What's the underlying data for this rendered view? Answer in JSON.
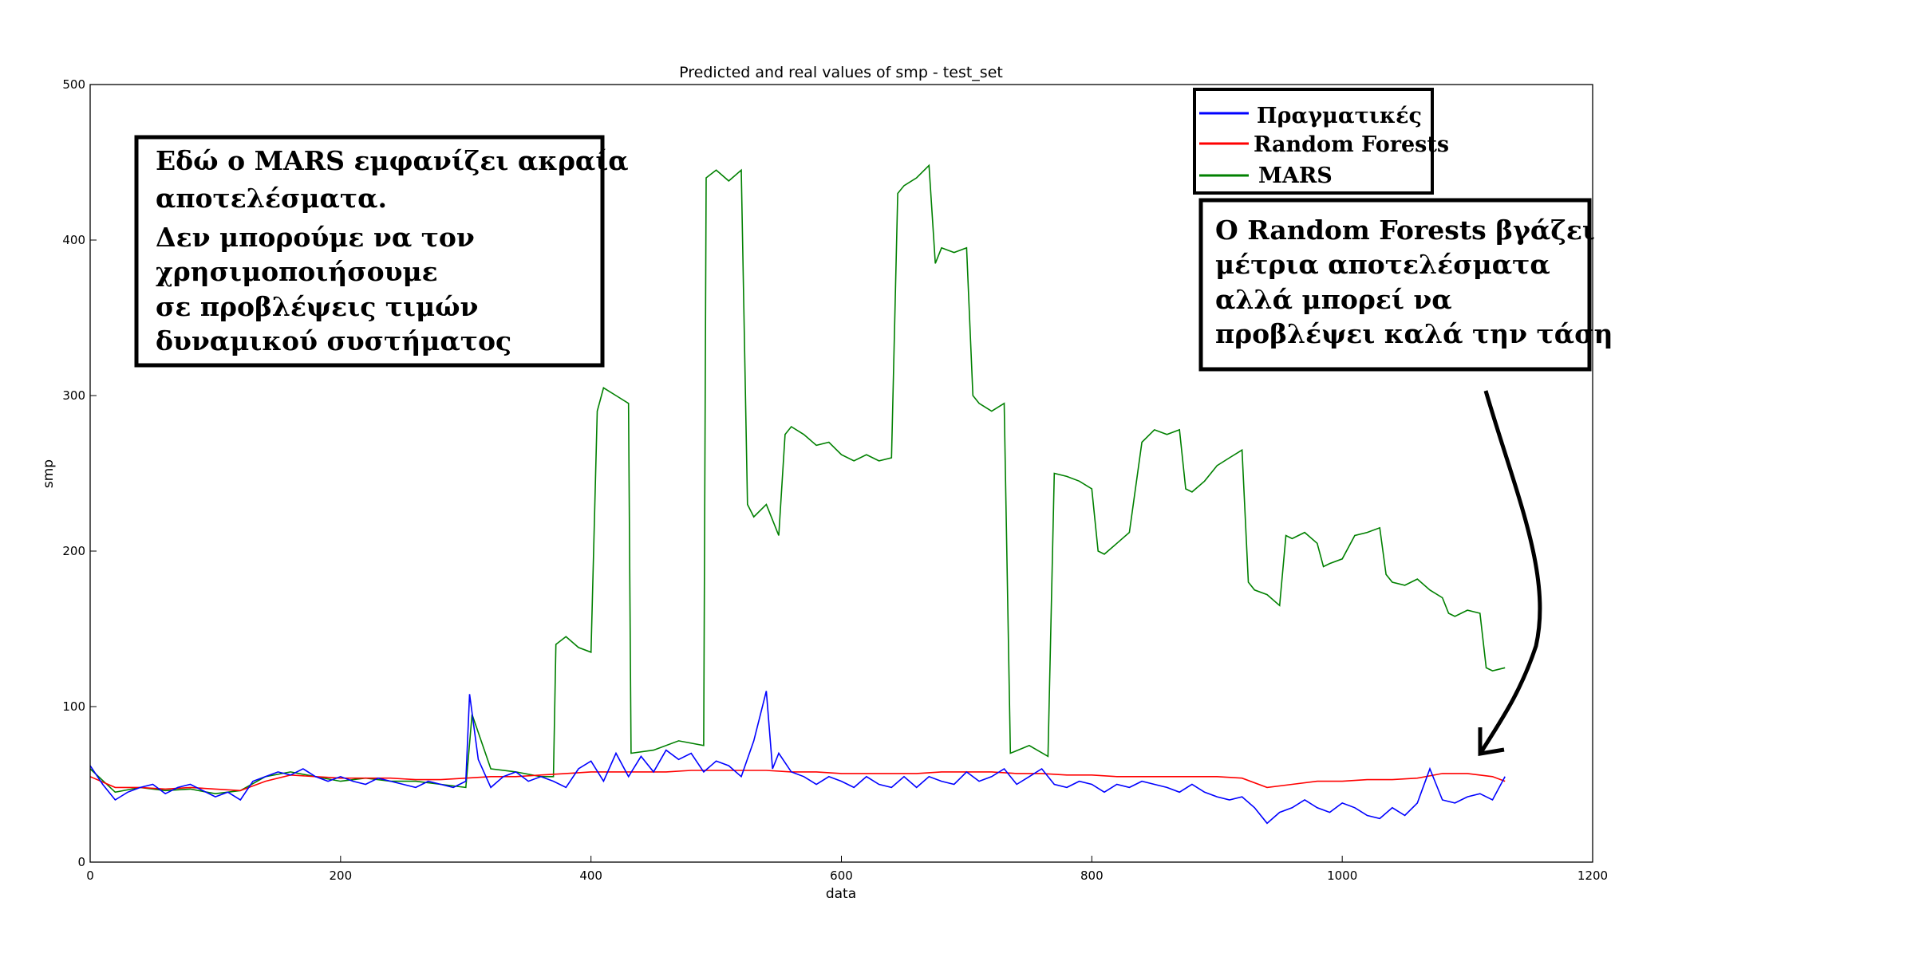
{
  "chart_data": {
    "type": "line",
    "title": "Predicted and real values of smp - test_set",
    "xlabel": "data",
    "ylabel": "smp",
    "xlim": [
      0,
      1200
    ],
    "ylim": [
      0,
      500
    ],
    "xticks": [
      "0",
      "200",
      "400",
      "600",
      "800",
      "1000",
      "1200"
    ],
    "yticks": [
      "0",
      "100",
      "200",
      "300",
      "400",
      "500"
    ],
    "legend_position": "top-right",
    "series": [
      {
        "name": "Πραγματικές",
        "color": "#0000ff",
        "points": [
          [
            0,
            62
          ],
          [
            10,
            50
          ],
          [
            20,
            40
          ],
          [
            30,
            45
          ],
          [
            40,
            48
          ],
          [
            50,
            50
          ],
          [
            60,
            44
          ],
          [
            70,
            48
          ],
          [
            80,
            50
          ],
          [
            90,
            46
          ],
          [
            100,
            42
          ],
          [
            110,
            45
          ],
          [
            120,
            40
          ],
          [
            130,
            52
          ],
          [
            140,
            55
          ],
          [
            150,
            58
          ],
          [
            160,
            56
          ],
          [
            170,
            60
          ],
          [
            180,
            55
          ],
          [
            190,
            52
          ],
          [
            200,
            55
          ],
          [
            210,
            52
          ],
          [
            220,
            50
          ],
          [
            230,
            54
          ],
          [
            240,
            52
          ],
          [
            250,
            50
          ],
          [
            260,
            48
          ],
          [
            270,
            52
          ],
          [
            280,
            50
          ],
          [
            290,
            48
          ],
          [
            300,
            52
          ],
          [
            303,
            108
          ],
          [
            310,
            66
          ],
          [
            320,
            48
          ],
          [
            330,
            55
          ],
          [
            340,
            58
          ],
          [
            350,
            52
          ],
          [
            360,
            55
          ],
          [
            370,
            52
          ],
          [
            380,
            48
          ],
          [
            390,
            60
          ],
          [
            400,
            65
          ],
          [
            410,
            52
          ],
          [
            420,
            70
          ],
          [
            430,
            55
          ],
          [
            440,
            68
          ],
          [
            450,
            58
          ],
          [
            460,
            72
          ],
          [
            470,
            66
          ],
          [
            480,
            70
          ],
          [
            490,
            58
          ],
          [
            500,
            65
          ],
          [
            510,
            62
          ],
          [
            520,
            55
          ],
          [
            530,
            78
          ],
          [
            540,
            110
          ],
          [
            545,
            60
          ],
          [
            550,
            70
          ],
          [
            560,
            58
          ],
          [
            570,
            55
          ],
          [
            580,
            50
          ],
          [
            590,
            55
          ],
          [
            600,
            52
          ],
          [
            610,
            48
          ],
          [
            620,
            55
          ],
          [
            630,
            50
          ],
          [
            640,
            48
          ],
          [
            650,
            55
          ],
          [
            660,
            48
          ],
          [
            670,
            55
          ],
          [
            680,
            52
          ],
          [
            690,
            50
          ],
          [
            700,
            58
          ],
          [
            710,
            52
          ],
          [
            720,
            55
          ],
          [
            730,
            60
          ],
          [
            740,
            50
          ],
          [
            750,
            55
          ],
          [
            760,
            60
          ],
          [
            770,
            50
          ],
          [
            780,
            48
          ],
          [
            790,
            52
          ],
          [
            800,
            50
          ],
          [
            810,
            45
          ],
          [
            820,
            50
          ],
          [
            830,
            48
          ],
          [
            840,
            52
          ],
          [
            850,
            50
          ],
          [
            860,
            48
          ],
          [
            870,
            45
          ],
          [
            880,
            50
          ],
          [
            890,
            45
          ],
          [
            900,
            42
          ],
          [
            910,
            40
          ],
          [
            920,
            42
          ],
          [
            930,
            35
          ],
          [
            940,
            25
          ],
          [
            950,
            32
          ],
          [
            960,
            35
          ],
          [
            970,
            40
          ],
          [
            980,
            35
          ],
          [
            990,
            32
          ],
          [
            1000,
            38
          ],
          [
            1010,
            35
          ],
          [
            1020,
            30
          ],
          [
            1030,
            28
          ],
          [
            1040,
            35
          ],
          [
            1050,
            30
          ],
          [
            1060,
            38
          ],
          [
            1070,
            60
          ],
          [
            1080,
            40
          ],
          [
            1090,
            38
          ],
          [
            1100,
            42
          ],
          [
            1110,
            44
          ],
          [
            1120,
            40
          ],
          [
            1130,
            55
          ]
        ]
      },
      {
        "name": "Random Forests",
        "color": "#ff0000",
        "points": [
          [
            0,
            55
          ],
          [
            20,
            48
          ],
          [
            40,
            48
          ],
          [
            60,
            47
          ],
          [
            80,
            48
          ],
          [
            100,
            47
          ],
          [
            120,
            46
          ],
          [
            140,
            52
          ],
          [
            160,
            56
          ],
          [
            180,
            55
          ],
          [
            200,
            54
          ],
          [
            220,
            54
          ],
          [
            240,
            54
          ],
          [
            260,
            53
          ],
          [
            280,
            53
          ],
          [
            300,
            54
          ],
          [
            320,
            55
          ],
          [
            340,
            55
          ],
          [
            360,
            56
          ],
          [
            380,
            57
          ],
          [
            400,
            58
          ],
          [
            420,
            58
          ],
          [
            440,
            58
          ],
          [
            460,
            58
          ],
          [
            480,
            59
          ],
          [
            500,
            59
          ],
          [
            520,
            59
          ],
          [
            540,
            59
          ],
          [
            560,
            58
          ],
          [
            580,
            58
          ],
          [
            600,
            57
          ],
          [
            620,
            57
          ],
          [
            640,
            57
          ],
          [
            660,
            57
          ],
          [
            680,
            58
          ],
          [
            700,
            58
          ],
          [
            720,
            58
          ],
          [
            740,
            57
          ],
          [
            760,
            57
          ],
          [
            780,
            56
          ],
          [
            800,
            56
          ],
          [
            820,
            55
          ],
          [
            840,
            55
          ],
          [
            860,
            55
          ],
          [
            880,
            55
          ],
          [
            900,
            55
          ],
          [
            920,
            54
          ],
          [
            940,
            48
          ],
          [
            960,
            50
          ],
          [
            980,
            52
          ],
          [
            1000,
            52
          ],
          [
            1020,
            53
          ],
          [
            1040,
            53
          ],
          [
            1060,
            54
          ],
          [
            1080,
            57
          ],
          [
            1100,
            57
          ],
          [
            1120,
            55
          ],
          [
            1130,
            52
          ]
        ]
      },
      {
        "name": "MARS",
        "color": "#008000",
        "points": [
          [
            0,
            60
          ],
          [
            20,
            45
          ],
          [
            40,
            48
          ],
          [
            60,
            46
          ],
          [
            80,
            47
          ],
          [
            100,
            44
          ],
          [
            120,
            46
          ],
          [
            140,
            55
          ],
          [
            160,
            58
          ],
          [
            180,
            55
          ],
          [
            200,
            52
          ],
          [
            220,
            54
          ],
          [
            240,
            52
          ],
          [
            260,
            52
          ],
          [
            280,
            50
          ],
          [
            300,
            48
          ],
          [
            305,
            95
          ],
          [
            320,
            60
          ],
          [
            340,
            58
          ],
          [
            360,
            55
          ],
          [
            370,
            55
          ],
          [
            372,
            140
          ],
          [
            380,
            145
          ],
          [
            390,
            138
          ],
          [
            400,
            135
          ],
          [
            405,
            290
          ],
          [
            410,
            305
          ],
          [
            420,
            300
          ],
          [
            430,
            295
          ],
          [
            432,
            70
          ],
          [
            450,
            72
          ],
          [
            470,
            78
          ],
          [
            490,
            75
          ],
          [
            492,
            440
          ],
          [
            500,
            445
          ],
          [
            510,
            438
          ],
          [
            520,
            445
          ],
          [
            525,
            230
          ],
          [
            530,
            222
          ],
          [
            540,
            230
          ],
          [
            550,
            210
          ],
          [
            555,
            275
          ],
          [
            560,
            280
          ],
          [
            570,
            275
          ],
          [
            580,
            268
          ],
          [
            590,
            270
          ],
          [
            600,
            262
          ],
          [
            610,
            258
          ],
          [
            620,
            262
          ],
          [
            630,
            258
          ],
          [
            640,
            260
          ],
          [
            645,
            430
          ],
          [
            650,
            435
          ],
          [
            660,
            440
          ],
          [
            670,
            448
          ],
          [
            675,
            385
          ],
          [
            680,
            395
          ],
          [
            690,
            392
          ],
          [
            700,
            395
          ],
          [
            705,
            300
          ],
          [
            710,
            295
          ],
          [
            720,
            290
          ],
          [
            730,
            295
          ],
          [
            735,
            70
          ],
          [
            750,
            75
          ],
          [
            765,
            68
          ],
          [
            770,
            250
          ],
          [
            780,
            248
          ],
          [
            790,
            245
          ],
          [
            800,
            240
          ],
          [
            805,
            200
          ],
          [
            810,
            198
          ],
          [
            820,
            205
          ],
          [
            830,
            212
          ],
          [
            840,
            270
          ],
          [
            850,
            278
          ],
          [
            860,
            275
          ],
          [
            870,
            278
          ],
          [
            875,
            240
          ],
          [
            880,
            238
          ],
          [
            890,
            245
          ],
          [
            900,
            255
          ],
          [
            910,
            260
          ],
          [
            920,
            265
          ],
          [
            925,
            180
          ],
          [
            930,
            175
          ],
          [
            940,
            172
          ],
          [
            950,
            165
          ],
          [
            955,
            210
          ],
          [
            960,
            208
          ],
          [
            970,
            212
          ],
          [
            980,
            205
          ],
          [
            985,
            190
          ],
          [
            990,
            192
          ],
          [
            1000,
            195
          ],
          [
            1010,
            210
          ],
          [
            1020,
            212
          ],
          [
            1030,
            215
          ],
          [
            1035,
            185
          ],
          [
            1040,
            180
          ],
          [
            1050,
            178
          ],
          [
            1060,
            182
          ],
          [
            1070,
            175
          ],
          [
            1080,
            170
          ],
          [
            1085,
            160
          ],
          [
            1090,
            158
          ],
          [
            1100,
            162
          ],
          [
            1110,
            160
          ],
          [
            1115,
            125
          ],
          [
            1120,
            123
          ],
          [
            1130,
            125
          ]
        ]
      }
    ],
    "annotations": [
      {
        "lines": [
          "Εδώ ο MARS  εμφανίζει  ακραία",
          "αποτελέσματα.",
          "Δεν μπορούμε να τον",
          "χρησιμοποιήσουμε",
          "σε προβλέψεις  τιμών",
          "δυναμικού  συστήματος"
        ]
      },
      {
        "lines": [
          "Ο Random Forests βγάζει",
          "μέτρια αποτελέσματα",
          "αλλά μπορεί να",
          "προβλέψει καλά την τάση"
        ]
      }
    ]
  }
}
